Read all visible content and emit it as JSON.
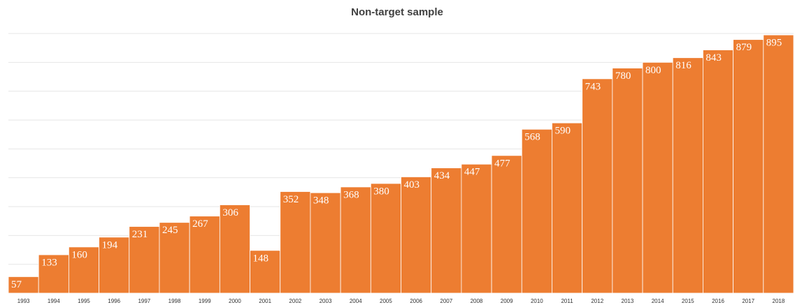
{
  "chart_data": {
    "type": "bar",
    "title": "Non-target sample",
    "categories": [
      "1993",
      "1994",
      "1995",
      "1996",
      "1997",
      "1998",
      "1999",
      "2000",
      "2001",
      "2002",
      "2003",
      "2004",
      "2005",
      "2006",
      "2007",
      "2008",
      "2009",
      "2010",
      "2011",
      "2012",
      "2013",
      "2014",
      "2015",
      "2016",
      "2017",
      "2018"
    ],
    "values": [
      57,
      133,
      160,
      194,
      231,
      245,
      267,
      306,
      148,
      352,
      348,
      368,
      380,
      403,
      434,
      447,
      477,
      568,
      590,
      743,
      780,
      800,
      816,
      843,
      879,
      895
    ],
    "color": "#ed7d31",
    "ylim": [
      0,
      900
    ],
    "yticks": [
      0,
      100,
      200,
      300,
      400,
      500,
      600,
      700,
      800,
      900
    ],
    "grid": true
  }
}
